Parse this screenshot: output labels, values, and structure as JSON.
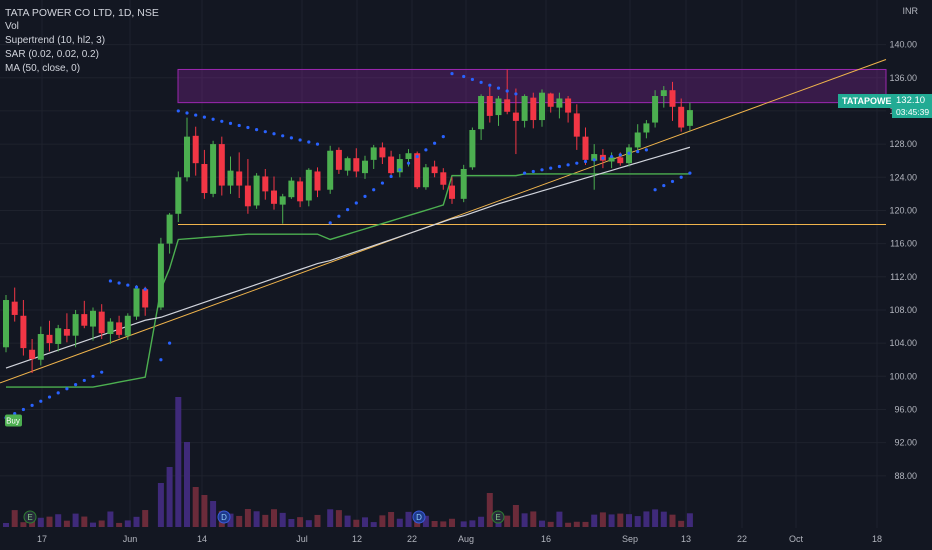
{
  "legend": {
    "title": "TATA POWER CO LTD, 1D, NSE",
    "vol": "Vol",
    "supertrend": "Supertrend (10, hl2, 3)",
    "sar": "SAR (0.02, 0.02, 0.2)",
    "ma": "MA (50, close, 0)"
  },
  "currency": "INR",
  "price_tag": {
    "symbol": "TATAPOWER",
    "price": "132.10",
    "countdown": "03:45:39"
  },
  "buy_label": "Buy",
  "colors": {
    "up": "#4caf50",
    "down": "#f23645",
    "sar": "#2962ff",
    "supertrend": "#4caf50",
    "ma": "#d1d4dc",
    "zone": "#9c27b0",
    "trend": "#f0b44c",
    "vol_up": "#3f2a7a",
    "vol_down": "#6b2b3a"
  },
  "chart_data": {
    "type": "candlestick",
    "ylim": [
      84,
      142
    ],
    "y_ticks": [
      "140.00",
      "136.00",
      "132.00",
      "128.00",
      "124.00",
      "120.00",
      "116.00",
      "112.00",
      "108.00",
      "104.00",
      "100.00",
      "96.00",
      "92.00",
      "88.00"
    ],
    "x_ticks": [
      "17",
      "Jun",
      "14",
      "Jul",
      "12",
      "22",
      "Aug",
      "16",
      "Sep",
      "13",
      "22",
      "Oct",
      "18"
    ],
    "events": [
      "E",
      "D",
      "D",
      "E"
    ],
    "series": [
      {
        "name": "TATAPOWER",
        "ohlc": [
          [
            103.5,
            109.8,
            102.9,
            109.2
          ],
          [
            109.0,
            110.7,
            106.6,
            107.4
          ],
          [
            107.3,
            109.2,
            102.5,
            103.4
          ],
          [
            103.2,
            104.5,
            100.4,
            102.1
          ],
          [
            102.0,
            106.0,
            101.3,
            105.1
          ],
          [
            105.0,
            106.7,
            103.0,
            104.0
          ],
          [
            103.9,
            106.2,
            103.0,
            105.8
          ],
          [
            105.7,
            107.6,
            104.1,
            104.9
          ],
          [
            104.9,
            108.0,
            103.5,
            107.5
          ],
          [
            107.5,
            109.1,
            105.8,
            106.1
          ],
          [
            106.0,
            108.3,
            104.3,
            107.9
          ],
          [
            107.8,
            108.7,
            104.5,
            105.2
          ],
          [
            105.1,
            107.0,
            103.9,
            106.6
          ],
          [
            106.5,
            107.3,
            104.6,
            105.0
          ],
          [
            104.9,
            107.6,
            104.4,
            107.3
          ],
          [
            107.2,
            111.0,
            106.8,
            110.6
          ],
          [
            110.5,
            110.8,
            107.3,
            108.3
          ],
          [
            108.3,
            116.7,
            108.0,
            116.0
          ],
          [
            116.0,
            119.7,
            114.8,
            119.5
          ],
          [
            119.6,
            124.7,
            118.6,
            124.0
          ],
          [
            124.0,
            131.2,
            123.5,
            128.9
          ],
          [
            129.0,
            130.1,
            124.2,
            125.7
          ],
          [
            125.6,
            127.3,
            121.4,
            122.1
          ],
          [
            122.0,
            128.4,
            121.6,
            128.0
          ],
          [
            128.0,
            128.9,
            121.8,
            123.0
          ],
          [
            123.0,
            126.5,
            122.0,
            124.8
          ],
          [
            124.7,
            127.0,
            121.5,
            123.0
          ],
          [
            123.0,
            126.2,
            119.6,
            120.5
          ],
          [
            120.6,
            124.5,
            120.2,
            124.2
          ],
          [
            124.1,
            125.0,
            121.3,
            122.3
          ],
          [
            122.4,
            124.1,
            120.1,
            120.8
          ],
          [
            120.7,
            122.0,
            118.4,
            121.7
          ],
          [
            121.6,
            124.0,
            121.4,
            123.6
          ],
          [
            123.5,
            124.0,
            120.4,
            121.1
          ],
          [
            121.2,
            125.1,
            120.5,
            124.9
          ],
          [
            124.7,
            125.2,
            121.6,
            122.4
          ],
          [
            122.5,
            127.8,
            122.0,
            127.2
          ],
          [
            127.3,
            127.6,
            124.4,
            124.9
          ],
          [
            124.8,
            126.5,
            124.2,
            126.3
          ],
          [
            126.3,
            127.5,
            124.0,
            124.7
          ],
          [
            124.5,
            126.6,
            123.8,
            126.0
          ],
          [
            126.1,
            127.9,
            125.0,
            127.6
          ],
          [
            127.6,
            128.2,
            125.6,
            126.4
          ],
          [
            126.5,
            127.2,
            124.1,
            124.5
          ],
          [
            124.6,
            126.8,
            124.0,
            126.2
          ],
          [
            126.2,
            127.4,
            125.3,
            126.9
          ],
          [
            126.9,
            127.1,
            122.6,
            122.8
          ],
          [
            122.8,
            125.6,
            122.5,
            125.2
          ],
          [
            125.3,
            126.0,
            124.0,
            124.5
          ],
          [
            124.6,
            125.1,
            122.5,
            123.1
          ],
          [
            123.0,
            124.0,
            120.8,
            121.4
          ],
          [
            121.4,
            125.5,
            121.0,
            125.0
          ],
          [
            125.2,
            130.0,
            124.9,
            129.7
          ],
          [
            129.8,
            134.0,
            128.5,
            133.8
          ],
          [
            133.8,
            134.9,
            130.6,
            131.4
          ],
          [
            131.5,
            133.8,
            130.2,
            133.5
          ],
          [
            133.4,
            137.0,
            131.6,
            131.9
          ],
          [
            131.8,
            134.7,
            126.8,
            130.8
          ],
          [
            130.8,
            134.0,
            130.0,
            133.8
          ],
          [
            133.6,
            134.2,
            129.9,
            130.9
          ],
          [
            130.9,
            134.6,
            130.1,
            134.2
          ],
          [
            134.1,
            134.2,
            131.8,
            132.5
          ],
          [
            132.4,
            134.2,
            131.1,
            133.5
          ],
          [
            133.5,
            133.8,
            130.6,
            131.8
          ],
          [
            131.7,
            132.8,
            127.3,
            128.9
          ],
          [
            128.9,
            130.0,
            125.5,
            126.1
          ],
          [
            126.0,
            128.0,
            122.5,
            126.8
          ],
          [
            126.7,
            127.4,
            125.1,
            126.0
          ],
          [
            125.9,
            127.0,
            125.1,
            126.4
          ],
          [
            126.4,
            127.0,
            125.4,
            125.7
          ],
          [
            125.7,
            128.0,
            125.3,
            127.6
          ],
          [
            127.6,
            130.4,
            127.0,
            129.4
          ],
          [
            129.4,
            130.9,
            128.7,
            130.5
          ],
          [
            130.6,
            134.5,
            130.0,
            133.8
          ],
          [
            133.8,
            135.0,
            132.4,
            134.5
          ],
          [
            134.5,
            135.5,
            130.8,
            132.5
          ],
          [
            132.5,
            133.5,
            129.5,
            130.0
          ],
          [
            130.2,
            133.0,
            129.6,
            132.1
          ]
        ]
      }
    ]
  }
}
